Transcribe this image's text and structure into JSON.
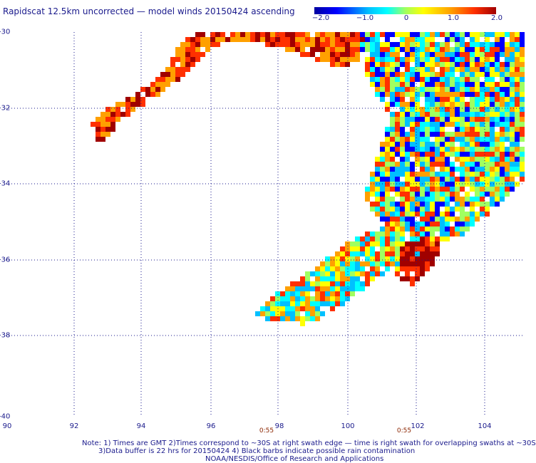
{
  "title": "Rapidscat 12.5km uncorrected — model winds 20150424 ascending",
  "colorbar": {
    "ticks": [
      "−2.0",
      "−1.0",
      "0",
      "1.0",
      "2.0"
    ],
    "colors": [
      "#0000a0",
      "#0000ff",
      "#00c0ff",
      "#00ffff",
      "#a0ff60",
      "#ffff00",
      "#ffa000",
      "#ff3000",
      "#a00000"
    ]
  },
  "map": {
    "lat_labels": [
      "-30",
      "-32",
      "-34",
      "-36",
      "-38",
      "-40"
    ],
    "lon_labels": [
      "90",
      "92",
      "94",
      "96",
      "98",
      "100",
      "102",
      "104"
    ],
    "time_labels": [
      "0:55",
      "0:55"
    ],
    "grid_style": "dotted"
  },
  "notes": {
    "line1": "Note: 1) Times are GMT 2)Times correspond to ~30S at right swath edge — time is right swath for overlapping swaths at ~30S",
    "line2": "3)Data buffer is 22 hrs for 20150424 4) Black barbs indicate possible rain contamination",
    "line3": "NOAA/NESDIS/Office of Research and Applications"
  }
}
